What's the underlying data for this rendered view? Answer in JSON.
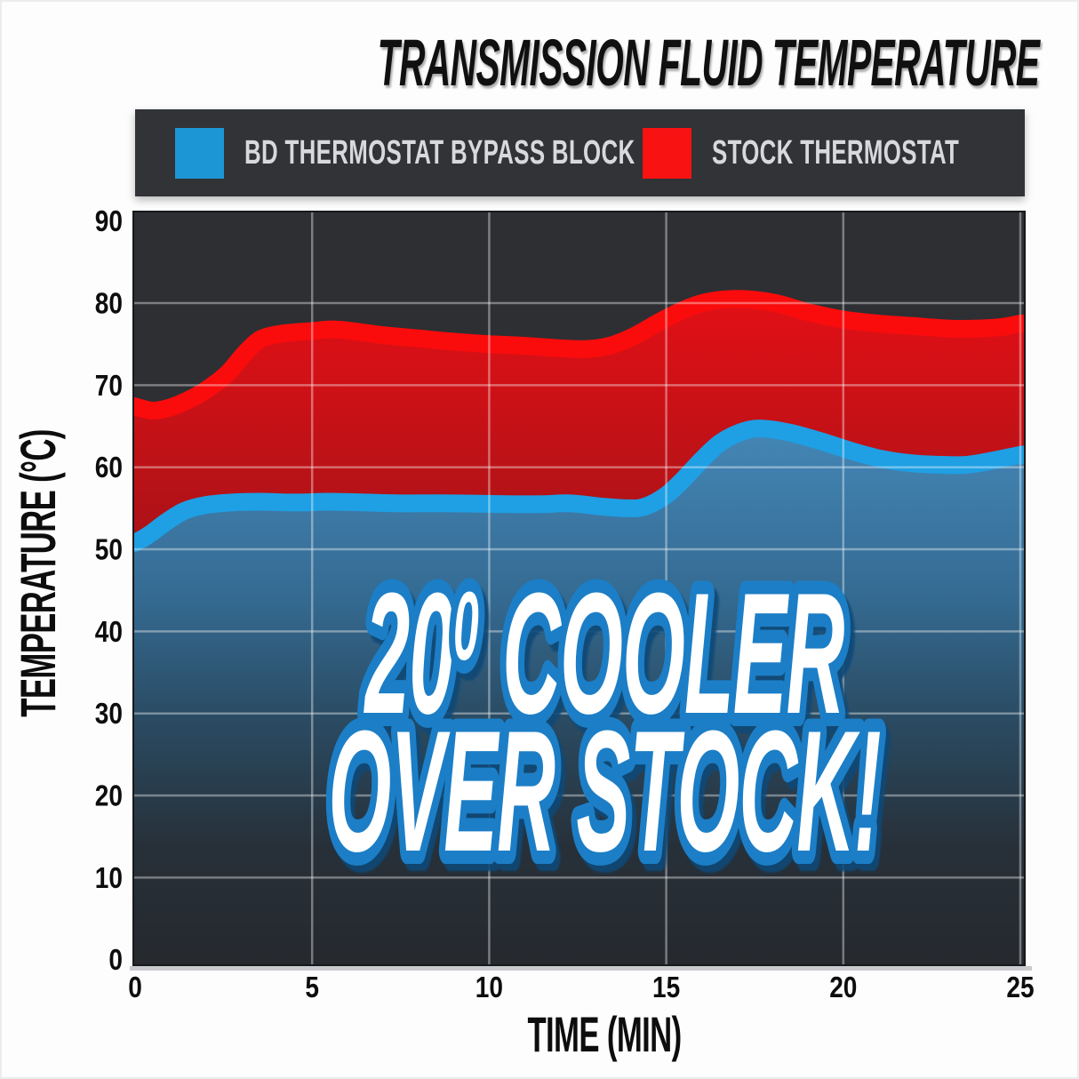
{
  "page": {
    "title": "TRANSMISSION FLUID TEMPERATURE",
    "background": "#fdfdfd"
  },
  "legend": {
    "background": "#313337",
    "items": [
      {
        "label": "BD THERMOSTAT BYPASS BLOCK",
        "color": "#1d96d6"
      },
      {
        "label": "STOCK THERMOSTAT",
        "color": "#f81212"
      }
    ]
  },
  "chart_data": {
    "type": "area",
    "title": "TRANSMISSION FLUID TEMPERATURE",
    "xlabel": "TIME (MIN)",
    "ylabel": "TEMPERATURE (°C)",
    "xlim": [
      0,
      25
    ],
    "ylim": [
      0,
      90
    ],
    "xticks": [
      0,
      5,
      10,
      15,
      20,
      25
    ],
    "yticks": [
      0,
      10,
      20,
      30,
      40,
      50,
      60,
      70,
      80,
      90
    ],
    "grid": true,
    "grid_color": "rgba(255,255,255,0.38)",
    "plot_background": "#2d2f33",
    "legend_position": "top",
    "series": [
      {
        "name": "BD THERMOSTAT BYPASS BLOCK",
        "line_color": "#1f9fe4",
        "fill_stops": [
          [
            0,
            "#4486b6"
          ],
          [
            0.3,
            "#356c94"
          ],
          [
            0.55,
            "#2a4a61"
          ],
          [
            0.78,
            "#273039"
          ],
          [
            1,
            "#26292e"
          ]
        ],
        "points": [
          [
            0,
            50.8
          ],
          [
            0.4,
            51.8
          ],
          [
            0.9,
            53.4
          ],
          [
            1.4,
            54.7
          ],
          [
            2,
            55.4
          ],
          [
            2.7,
            55.7
          ],
          [
            3.5,
            55.8
          ],
          [
            4.5,
            55.7
          ],
          [
            5.5,
            55.8
          ],
          [
            6.5,
            55.7
          ],
          [
            7.5,
            55.6
          ],
          [
            9,
            55.6
          ],
          [
            10.5,
            55.5
          ],
          [
            11.5,
            55.5
          ],
          [
            12.3,
            55.6
          ],
          [
            13.2,
            55.2
          ],
          [
            13.9,
            55.0
          ],
          [
            14.4,
            55.2
          ],
          [
            15,
            56.6
          ],
          [
            15.5,
            58.6
          ],
          [
            16,
            60.9
          ],
          [
            16.5,
            62.9
          ],
          [
            17,
            64.1
          ],
          [
            17.5,
            64.7
          ],
          [
            18,
            64.6
          ],
          [
            18.7,
            64.0
          ],
          [
            19.5,
            63.0
          ],
          [
            20.3,
            61.9
          ],
          [
            21.1,
            61.0
          ],
          [
            21.9,
            60.5
          ],
          [
            22.7,
            60.3
          ],
          [
            23.5,
            60.3
          ],
          [
            24.2,
            60.8
          ],
          [
            25,
            61.5
          ]
        ]
      },
      {
        "name": "STOCK THERMOSTAT",
        "line_color": "#fa0c0c",
        "fill_stops": [
          [
            0,
            "#e21016"
          ],
          [
            0.3,
            "#b41217"
          ],
          [
            0.55,
            "#8c1116"
          ],
          [
            0.8,
            "#591013"
          ],
          [
            1,
            "#371013"
          ]
        ],
        "points": [
          [
            0,
            67.4
          ],
          [
            0.5,
            66.9
          ],
          [
            1,
            67.3
          ],
          [
            1.6,
            68.4
          ],
          [
            2.1,
            69.7
          ],
          [
            2.6,
            71.4
          ],
          [
            3.1,
            73.9
          ],
          [
            3.5,
            75.5
          ],
          [
            3.9,
            76.1
          ],
          [
            4.4,
            76.4
          ],
          [
            5,
            76.6
          ],
          [
            5.6,
            76.8
          ],
          [
            6.3,
            76.5
          ],
          [
            7,
            76.1
          ],
          [
            8,
            75.7
          ],
          [
            9,
            75.3
          ],
          [
            10,
            75.0
          ],
          [
            11,
            74.8
          ],
          [
            12,
            74.5
          ],
          [
            12.7,
            74.4
          ],
          [
            13.4,
            74.8
          ],
          [
            14.1,
            76.0
          ],
          [
            14.8,
            77.7
          ],
          [
            15.5,
            79.2
          ],
          [
            16.1,
            80.1
          ],
          [
            16.8,
            80.5
          ],
          [
            17.5,
            80.4
          ],
          [
            18.2,
            79.9
          ],
          [
            19,
            78.9
          ],
          [
            20,
            78.0
          ],
          [
            21,
            77.5
          ],
          [
            22,
            77.2
          ],
          [
            23,
            76.9
          ],
          [
            23.8,
            76.9
          ],
          [
            24.5,
            77.1
          ],
          [
            25,
            77.5
          ]
        ]
      }
    ],
    "annotation": {
      "text": "20⁰ COOLER OVER STOCK!",
      "prefix": "20",
      "sup": "0",
      "suffix": "COOLER",
      "line2": "OVER STOCK!",
      "fill": "#ffffff",
      "outline": "#1a7ec6",
      "shadow": "#0c4a77"
    }
  }
}
